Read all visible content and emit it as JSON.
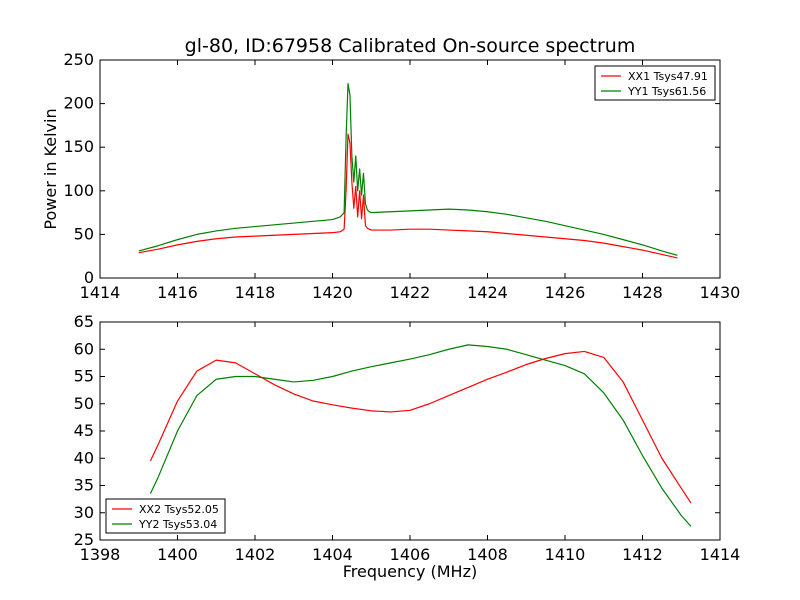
{
  "chart_data": [
    {
      "type": "line",
      "title": "gl-80, ID:67958 Calibrated On-source spectrum",
      "xlabel": "",
      "ylabel": "Power in Kelvin",
      "xlim": [
        1414,
        1430
      ],
      "ylim": [
        0,
        250
      ],
      "xticks": [
        1414,
        1416,
        1418,
        1420,
        1422,
        1424,
        1426,
        1428,
        1430
      ],
      "yticks": [
        0,
        50,
        100,
        150,
        200,
        250
      ],
      "legend_position": "top-right",
      "series": [
        {
          "name": "XX1 Tsys47.91",
          "color": "#ff0000",
          "x": [
            1415.0,
            1415.5,
            1416.0,
            1416.5,
            1417.0,
            1417.5,
            1418.0,
            1418.5,
            1419.0,
            1419.5,
            1420.0,
            1420.2,
            1420.3,
            1420.35,
            1420.4,
            1420.45,
            1420.5,
            1420.55,
            1420.6,
            1420.65,
            1420.7,
            1420.75,
            1420.8,
            1420.85,
            1420.9,
            1420.95,
            1421.0,
            1421.5,
            1422.0,
            1422.5,
            1423.0,
            1423.5,
            1424.0,
            1424.5,
            1425.0,
            1425.5,
            1426.0,
            1426.5,
            1427.0,
            1427.5,
            1428.0,
            1428.5,
            1428.9
          ],
          "y": [
            29,
            33,
            38,
            42,
            45,
            47,
            48,
            49,
            50,
            51,
            52,
            53,
            56,
            100,
            165,
            155,
            110,
            80,
            105,
            70,
            100,
            68,
            95,
            60,
            57,
            56,
            55,
            55,
            56,
            56,
            55,
            54,
            53,
            51,
            49,
            47,
            45,
            43,
            40,
            36,
            32,
            27,
            23
          ]
        },
        {
          "name": "YY1 Tsys61.56",
          "color": "#008000",
          "x": [
            1415.0,
            1415.5,
            1416.0,
            1416.5,
            1417.0,
            1417.5,
            1418.0,
            1418.5,
            1419.0,
            1419.5,
            1420.0,
            1420.2,
            1420.3,
            1420.35,
            1420.4,
            1420.45,
            1420.5,
            1420.55,
            1420.6,
            1420.65,
            1420.7,
            1420.75,
            1420.8,
            1420.85,
            1420.9,
            1420.95,
            1421.0,
            1421.5,
            1422.0,
            1422.5,
            1423.0,
            1423.5,
            1424.0,
            1424.5,
            1425.0,
            1425.5,
            1426.0,
            1426.5,
            1427.0,
            1427.5,
            1428.0,
            1428.5,
            1428.9
          ],
          "y": [
            31,
            37,
            44,
            50,
            54,
            57,
            59,
            61,
            63,
            65,
            67,
            70,
            75,
            160,
            223,
            210,
            140,
            110,
            140,
            100,
            125,
            95,
            120,
            85,
            78,
            76,
            75,
            76,
            77,
            78,
            79,
            78,
            76,
            73,
            69,
            65,
            60,
            55,
            50,
            44,
            38,
            31,
            26
          ]
        }
      ]
    },
    {
      "type": "line",
      "title": "",
      "xlabel": "Frequency (MHz)",
      "ylabel": "",
      "xlim": [
        1398,
        1414
      ],
      "ylim": [
        25,
        65
      ],
      "xticks": [
        1398,
        1400,
        1402,
        1404,
        1406,
        1408,
        1410,
        1412,
        1414
      ],
      "yticks": [
        25,
        30,
        35,
        40,
        45,
        50,
        55,
        60,
        65
      ],
      "legend_position": "bottom-left",
      "series": [
        {
          "name": "XX2 Tsys52.05",
          "color": "#ff0000",
          "x": [
            1399.3,
            1399.5,
            1400.0,
            1400.5,
            1401.0,
            1401.5,
            1402.0,
            1402.5,
            1403.0,
            1403.5,
            1404.0,
            1404.5,
            1405.0,
            1405.5,
            1406.0,
            1406.5,
            1407.0,
            1407.5,
            1408.0,
            1408.5,
            1409.0,
            1409.5,
            1410.0,
            1410.5,
            1411.0,
            1411.5,
            1412.0,
            1412.5,
            1413.0,
            1413.25
          ],
          "y": [
            39.5,
            42.5,
            50.5,
            56.0,
            58.0,
            57.5,
            55.5,
            53.5,
            51.8,
            50.5,
            49.8,
            49.2,
            48.7,
            48.5,
            48.8,
            50.0,
            51.5,
            53.0,
            54.5,
            55.8,
            57.2,
            58.3,
            59.2,
            59.6,
            58.5,
            54.0,
            47.0,
            40.0,
            34.5,
            31.8
          ]
        },
        {
          "name": "YY2 Tsys53.04",
          "color": "#008000",
          "x": [
            1399.3,
            1399.5,
            1400.0,
            1400.5,
            1401.0,
            1401.5,
            1402.0,
            1402.5,
            1403.0,
            1403.5,
            1404.0,
            1404.5,
            1405.0,
            1405.5,
            1406.0,
            1406.5,
            1407.0,
            1407.5,
            1408.0,
            1408.5,
            1409.0,
            1409.5,
            1410.0,
            1410.5,
            1411.0,
            1411.5,
            1412.0,
            1412.5,
            1413.0,
            1413.25
          ],
          "y": [
            33.5,
            36.5,
            45.0,
            51.5,
            54.5,
            55.0,
            55.0,
            54.5,
            54.0,
            54.3,
            55.0,
            56.0,
            56.8,
            57.5,
            58.2,
            59.0,
            60.0,
            60.8,
            60.5,
            60.0,
            59.0,
            58.0,
            57.0,
            55.5,
            52.0,
            47.0,
            40.5,
            34.5,
            29.5,
            27.5
          ]
        }
      ]
    }
  ]
}
